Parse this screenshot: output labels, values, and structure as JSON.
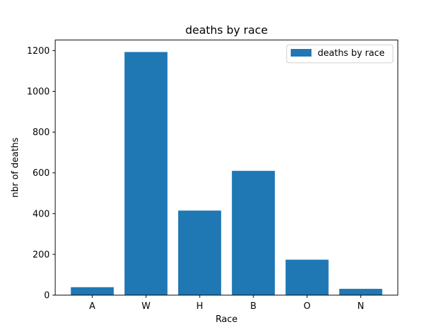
{
  "chart_data": {
    "type": "bar",
    "title": "deaths by race",
    "xlabel": "Race",
    "ylabel": "nbr of deaths",
    "categories": [
      "A",
      "W",
      "H",
      "B",
      "O",
      "N"
    ],
    "series": [
      {
        "name": "deaths by race",
        "values": [
          39,
          1193,
          415,
          610,
          174,
          31
        ],
        "color": "#1f77b4"
      }
    ],
    "ylim": [
      0,
      1252
    ],
    "yticks": [
      0,
      200,
      400,
      600,
      800,
      1000,
      1200
    ],
    "grid": false,
    "legend_position": "top-right"
  }
}
